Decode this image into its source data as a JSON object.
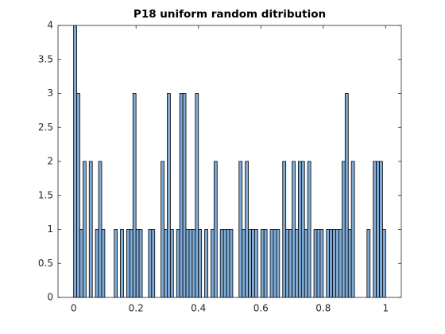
{
  "chart_data": {
    "type": "histogram",
    "title": "P18 uniform random ditribution",
    "bins": [
      0,
      0.01,
      0.02,
      0.03,
      0.04,
      0.05,
      0.06,
      0.07,
      0.08,
      0.09,
      0.1,
      0.11,
      0.12,
      0.13,
      0.14,
      0.15,
      0.16,
      0.17,
      0.18,
      0.19,
      0.2,
      0.21,
      0.22,
      0.23,
      0.24,
      0.25,
      0.26,
      0.27,
      0.28,
      0.29,
      0.3,
      0.31,
      0.32,
      0.33,
      0.34,
      0.35,
      0.36,
      0.37,
      0.38,
      0.39,
      0.4,
      0.41,
      0.42,
      0.43,
      0.44,
      0.45,
      0.46,
      0.47,
      0.48,
      0.49,
      0.5,
      0.51,
      0.52,
      0.53,
      0.54,
      0.55,
      0.56,
      0.57,
      0.58,
      0.59,
      0.6,
      0.61,
      0.62,
      0.63,
      0.64,
      0.65,
      0.66,
      0.67,
      0.68,
      0.69,
      0.7,
      0.71,
      0.72,
      0.73,
      0.74,
      0.75,
      0.76,
      0.77,
      0.78,
      0.79,
      0.8,
      0.81,
      0.82,
      0.83,
      0.84,
      0.85,
      0.86,
      0.87,
      0.88,
      0.89,
      0.9,
      0.91,
      0.92,
      0.93,
      0.94,
      0.95,
      0.96,
      0.97,
      0.98,
      0.99,
      1
    ],
    "counts": [
      4,
      3,
      1,
      2,
      0,
      2,
      0,
      1,
      2,
      1,
      0,
      0,
      0,
      1,
      0,
      1,
      0,
      1,
      1,
      3,
      1,
      1,
      0,
      0,
      1,
      1,
      0,
      0,
      2,
      1,
      3,
      1,
      0,
      1,
      3,
      3,
      1,
      1,
      1,
      3,
      1,
      0,
      1,
      0,
      1,
      2,
      0,
      1,
      1,
      1,
      1,
      0,
      0,
      2,
      1,
      2,
      1,
      1,
      1,
      0,
      1,
      1,
      0,
      1,
      1,
      1,
      0,
      2,
      1,
      1,
      2,
      1,
      2,
      2,
      1,
      2,
      0,
      1,
      1,
      1,
      0,
      1,
      1,
      1,
      1,
      1,
      2,
      3,
      1,
      2,
      0,
      0,
      0,
      0,
      1,
      0,
      2,
      2,
      2,
      1
    ],
    "color": "#7eaad6",
    "xlim": [
      -0.05,
      1.05
    ],
    "ylim": [
      0,
      4
    ],
    "xticks": [
      0,
      0.2,
      0.4,
      0.6,
      0.8,
      1
    ],
    "yticks": [
      0,
      0.5,
      1,
      1.5,
      2,
      2.5,
      3,
      3.5,
      4
    ],
    "grid": false
  }
}
